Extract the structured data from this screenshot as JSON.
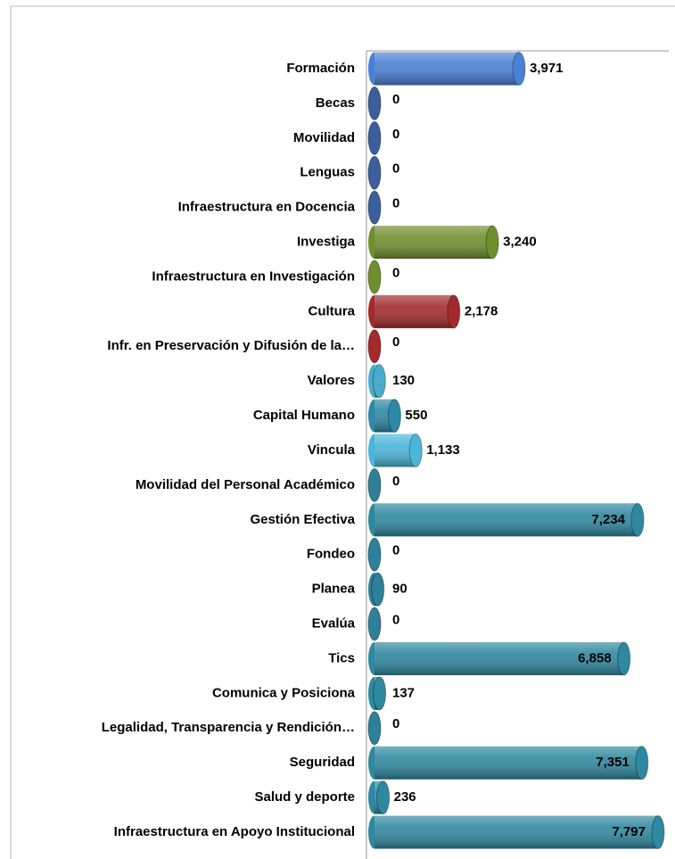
{
  "chart_data": {
    "type": "bar",
    "orientation": "horizontal",
    "categories": [
      "Formación",
      "Becas",
      "Movilidad",
      "Lenguas",
      "Infraestructura en Docencia",
      "Investiga",
      "Infraestructura en Investigación",
      "Cultura",
      "Infr. en Preservación y Difusión de la…",
      "Valores",
      "Capital Humano",
      "Vincula",
      "Movilidad del Personal Académico",
      "Gestión Efectiva",
      "Fondeo",
      "Planea",
      "Evalúa",
      "Tics",
      "Comunica y Posiciona",
      "Legalidad, Transparencia y Rendición…",
      "Seguridad",
      "Salud y deporte",
      "Infraestructura en Apoyo Institucional"
    ],
    "values": [
      3971,
      0,
      0,
      0,
      0,
      3240,
      0,
      2178,
      0,
      130,
      550,
      1133,
      0,
      7234,
      0,
      90,
      0,
      6858,
      137,
      0,
      7351,
      236,
      7797
    ],
    "value_labels": [
      "3,971",
      "0",
      "0",
      "0",
      "0",
      "3,240",
      "0",
      "2,178",
      "0",
      "130",
      "550",
      "1,133",
      "0",
      "7,234",
      "0",
      "90",
      "0",
      "6,858",
      "137",
      "0",
      "7,351",
      "236",
      "7,797"
    ],
    "colors": [
      "#4a80d6",
      "#3b5f9c",
      "#3b5f9c",
      "#3b5f9c",
      "#3b5f9c",
      "#6f8f2c",
      "#6f8f2c",
      "#a32b2b",
      "#a32b2b",
      "#4aaccc",
      "#2e88a6",
      "#4ab6da",
      "#2e7f98",
      "#2e88a0",
      "#2e7f98",
      "#2e7f98",
      "#2e7f98",
      "#2e88a0",
      "#2e88a0",
      "#2e7f98",
      "#2e88a0",
      "#2e88a0",
      "#2e88a0"
    ]
  }
}
